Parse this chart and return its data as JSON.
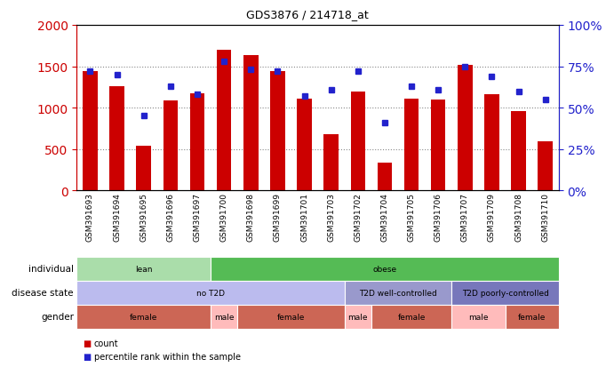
{
  "title": "GDS3876 / 214718_at",
  "samples": [
    "GSM391693",
    "GSM391694",
    "GSM391695",
    "GSM391696",
    "GSM391697",
    "GSM391700",
    "GSM391698",
    "GSM391699",
    "GSM391701",
    "GSM391703",
    "GSM391702",
    "GSM391704",
    "GSM391705",
    "GSM391706",
    "GSM391707",
    "GSM391709",
    "GSM391708",
    "GSM391710"
  ],
  "counts": [
    1440,
    1260,
    540,
    1090,
    1170,
    1700,
    1630,
    1440,
    1110,
    680,
    1190,
    340,
    1110,
    1100,
    1520,
    1160,
    960,
    590
  ],
  "percentiles": [
    72,
    70,
    45,
    63,
    58,
    78,
    73,
    72,
    57,
    61,
    72,
    41,
    63,
    61,
    75,
    69,
    60,
    55
  ],
  "ylim_left": [
    0,
    2000
  ],
  "ylim_right": [
    0,
    100
  ],
  "yticks_left": [
    0,
    500,
    1000,
    1500,
    2000
  ],
  "yticks_right": [
    0,
    25,
    50,
    75,
    100
  ],
  "bar_color": "#cc0000",
  "dot_color": "#2222cc",
  "annotation_rows": [
    {
      "label": "individual",
      "segments": [
        {
          "text": "lean",
          "start": 0,
          "end": 5,
          "color": "#aaddaa"
        },
        {
          "text": "obese",
          "start": 5,
          "end": 18,
          "color": "#55bb55"
        }
      ]
    },
    {
      "label": "disease state",
      "segments": [
        {
          "text": "no T2D",
          "start": 0,
          "end": 10,
          "color": "#bbbbee"
        },
        {
          "text": "T2D well-controlled",
          "start": 10,
          "end": 14,
          "color": "#9999cc"
        },
        {
          "text": "T2D poorly-controlled",
          "start": 14,
          "end": 18,
          "color": "#7777bb"
        }
      ]
    },
    {
      "label": "gender",
      "segments": [
        {
          "text": "female",
          "start": 0,
          "end": 5,
          "color": "#cc6655"
        },
        {
          "text": "male",
          "start": 5,
          "end": 6,
          "color": "#ffbbbb"
        },
        {
          "text": "female",
          "start": 6,
          "end": 10,
          "color": "#cc6655"
        },
        {
          "text": "male",
          "start": 10,
          "end": 11,
          "color": "#ffbbbb"
        },
        {
          "text": "female",
          "start": 11,
          "end": 14,
          "color": "#cc6655"
        },
        {
          "text": "male",
          "start": 14,
          "end": 16,
          "color": "#ffbbbb"
        },
        {
          "text": "female",
          "start": 16,
          "end": 18,
          "color": "#cc6655"
        }
      ]
    }
  ],
  "legend_items": [
    {
      "label": "count",
      "color": "#cc0000"
    },
    {
      "label": "percentile rank within the sample",
      "color": "#2222cc"
    }
  ],
  "background_color": "#ffffff",
  "plot_bg_color": "#ffffff",
  "grid_color": "#888888",
  "left_label_color": "#cc0000",
  "right_label_color": "#2222cc"
}
